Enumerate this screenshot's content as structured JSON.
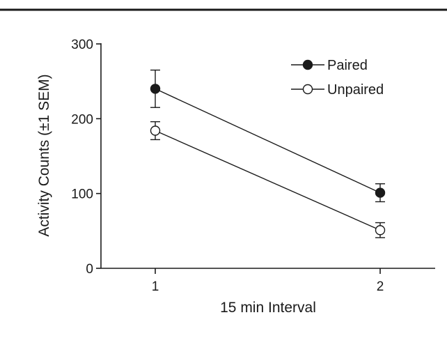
{
  "chart_data": {
    "type": "line",
    "title": "",
    "xlabel": "15 min Interval",
    "ylabel": "Activity Counts (±1 SEM)",
    "x": [
      1,
      2
    ],
    "xticks": [
      "1",
      "2"
    ],
    "yticks": [
      "0",
      "100",
      "200",
      "300"
    ],
    "xlim": [
      0.5,
      2.5
    ],
    "ylim": [
      0,
      300
    ],
    "grid": false,
    "legend_position": "top-right",
    "series": [
      {
        "name": "Paired",
        "marker": "filled-circle",
        "color": "#1a1a1a",
        "values": [
          240,
          101
        ],
        "errors": [
          25,
          12
        ]
      },
      {
        "name": "Unpaired",
        "marker": "open-circle",
        "color": "#1a1a1a",
        "values": [
          184,
          51
        ],
        "errors": [
          12,
          10
        ]
      }
    ]
  }
}
